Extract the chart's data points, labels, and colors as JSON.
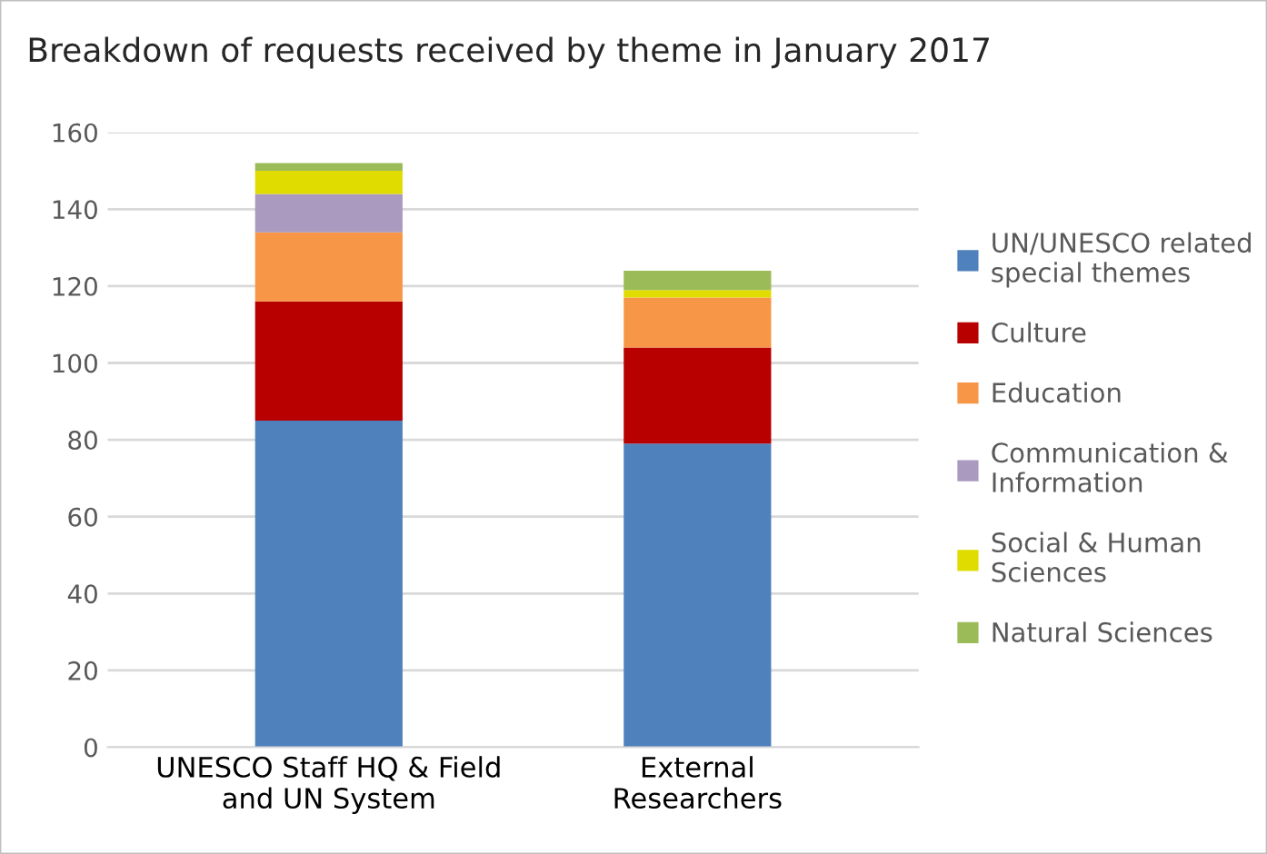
{
  "chart_data": {
    "type": "bar",
    "stacked": true,
    "title": "Breakdown of requests received by theme in January 2017",
    "categories": [
      "UNESCO Staff HQ & Field\nand UN System",
      "External\nResearchers"
    ],
    "series": [
      {
        "name": "UN/UNESCO related\nspecial themes",
        "color": "#4f81bd",
        "values": [
          85,
          79
        ]
      },
      {
        "name": "Culture",
        "color": "#b80000",
        "values": [
          31,
          25
        ]
      },
      {
        "name": "Education",
        "color": "#f79646",
        "values": [
          18,
          13
        ]
      },
      {
        "name": "Communication &\nInformation",
        "color": "#ab9ac0",
        "values": [
          10,
          0
        ]
      },
      {
        "name": "Social & Human\nSciences",
        "color": "#e0dc00",
        "values": [
          6,
          2
        ]
      },
      {
        "name": "Natural Sciences",
        "color": "#9bbb59",
        "values": [
          2,
          5
        ]
      }
    ],
    "ylim": [
      0,
      160
    ],
    "yticks": [
      0,
      20,
      40,
      60,
      80,
      100,
      120,
      140,
      160
    ],
    "grid": "y",
    "legend": "right"
  }
}
